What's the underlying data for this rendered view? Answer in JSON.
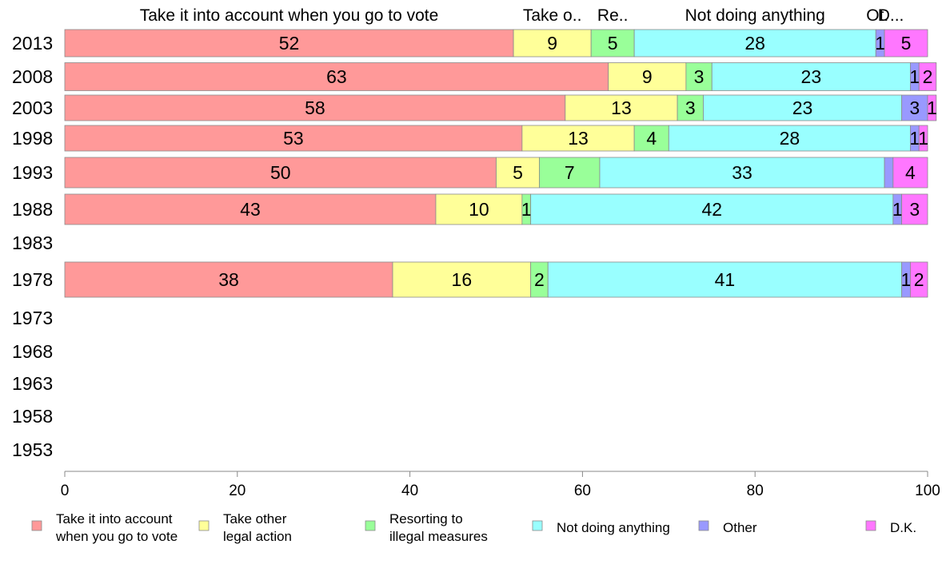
{
  "chart_data": {
    "type": "bar",
    "orientation": "horizontal",
    "stacked": true,
    "categories": [
      "2013",
      "2008",
      "2003",
      "1998",
      "1993",
      "1988",
      "1983",
      "1978",
      "1973",
      "1968",
      "1963",
      "1958",
      "1953"
    ],
    "series": [
      {
        "name": "Take it into account when you go to vote",
        "legend_lines": [
          "Take it into account",
          "when you go to vote"
        ],
        "header": "Take it into account when you go to vote",
        "color": "#ff9999",
        "values": [
          52,
          63,
          58,
          53,
          50,
          43,
          null,
          38,
          null,
          null,
          null,
          null,
          null
        ]
      },
      {
        "name": "Take other legal action",
        "legend_lines": [
          "Take other",
          "legal action"
        ],
        "header": "Take o..",
        "color": "#ffff99",
        "values": [
          9,
          9,
          13,
          13,
          5,
          10,
          null,
          16,
          null,
          null,
          null,
          null,
          null
        ]
      },
      {
        "name": "Resorting to illegal measures",
        "legend_lines": [
          "Resorting to",
          "illegal measures"
        ],
        "header": "Re..",
        "color": "#99ff99",
        "values": [
          5,
          3,
          3,
          4,
          7,
          1,
          null,
          2,
          null,
          null,
          null,
          null,
          null
        ]
      },
      {
        "name": "Not doing anything",
        "legend_lines": [
          "Not doing anything"
        ],
        "header": "Not doing anything",
        "color": "#99ffff",
        "values": [
          28,
          23,
          23,
          28,
          33,
          42,
          null,
          41,
          null,
          null,
          null,
          null,
          null
        ]
      },
      {
        "name": "Other",
        "legend_lines": [
          "Other"
        ],
        "header": "Ot.",
        "color": "#9999ff",
        "values": [
          1,
          1,
          3,
          1,
          1,
          1,
          null,
          1,
          null,
          null,
          null,
          null,
          null
        ]
      },
      {
        "name": "D.K.",
        "legend_lines": [
          "D.K."
        ],
        "header": "D...",
        "color": "#ff77ff",
        "values": [
          5,
          2,
          1,
          1,
          4,
          3,
          null,
          2,
          null,
          null,
          null,
          null,
          null
        ]
      }
    ],
    "data_labels": [
      [
        "52",
        "9",
        "5",
        "28",
        "1",
        "5"
      ],
      [
        "63",
        "9",
        "3",
        "23",
        "1",
        "2"
      ],
      [
        "58",
        "13",
        "3",
        "23",
        "3",
        "1"
      ],
      [
        "53",
        "13",
        "4",
        "28",
        "1",
        "1"
      ],
      [
        "50",
        "5",
        "7",
        "33",
        "",
        "4"
      ],
      [
        "43",
        "10",
        "1",
        "42",
        "1",
        "3"
      ],
      [],
      [
        "38",
        "16",
        "2",
        "41",
        "1",
        "2"
      ],
      [],
      [],
      [],
      [],
      []
    ],
    "xlim": [
      0,
      100
    ],
    "xticks": [
      "0",
      "20",
      "40",
      "60",
      "80",
      "100"
    ],
    "xlabel": "",
    "ylabel": "",
    "title": "",
    "legend_position": "bottom",
    "grid": false
  }
}
